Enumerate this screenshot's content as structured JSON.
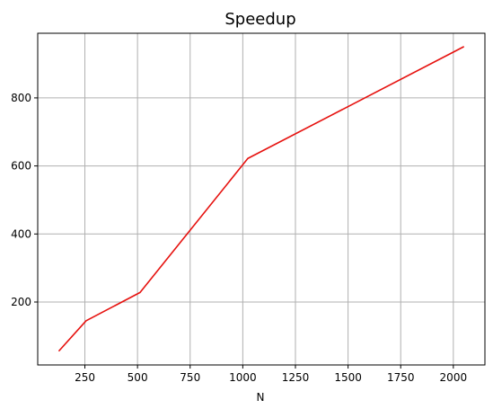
{
  "chart_data": {
    "type": "line",
    "title": "Speedup",
    "xlabel": "N",
    "ylabel": "",
    "xlim": [
      26,
      2150
    ],
    "ylim": [
      15,
      990
    ],
    "xticks": [
      250,
      500,
      750,
      1000,
      1250,
      1500,
      1750,
      2000
    ],
    "yticks": [
      200,
      400,
      600,
      800
    ],
    "grid": true,
    "series": [
      {
        "color": "#e6120f",
        "x": [
          128,
          256,
          512,
          1024,
          2048
        ],
        "y": [
          57,
          145,
          228,
          622,
          950
        ]
      }
    ]
  }
}
